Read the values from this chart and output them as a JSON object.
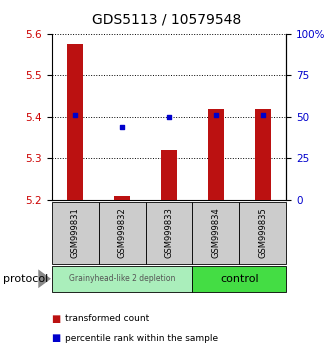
{
  "title": "GDS5113 / 10579548",
  "samples": [
    "GSM999831",
    "GSM999832",
    "GSM999833",
    "GSM999834",
    "GSM999835"
  ],
  "transformed_counts": [
    5.575,
    5.21,
    5.32,
    5.42,
    5.42
  ],
  "percentile_ranks": [
    51,
    44,
    50,
    51,
    51
  ],
  "bar_bottom": 5.2,
  "ylim_left": [
    5.2,
    5.6
  ],
  "ylim_right": [
    0,
    100
  ],
  "yticks_left": [
    5.2,
    5.3,
    5.4,
    5.5,
    5.6
  ],
  "yticks_right": [
    0,
    25,
    50,
    75,
    100
  ],
  "ytick_labels_right": [
    "0",
    "25",
    "50",
    "75",
    "100%"
  ],
  "left_color": "#cc0000",
  "right_color": "#0000cc",
  "bar_color": "#bb1111",
  "dot_color": "#0000cc",
  "groups": [
    {
      "label": "Grainyhead-like 2 depletion",
      "color": "#aaeebb",
      "n": 3
    },
    {
      "label": "control",
      "color": "#44dd44",
      "n": 2
    }
  ],
  "protocol_label": "protocol",
  "legend_items": [
    {
      "color": "#bb1111",
      "label": "transformed count"
    },
    {
      "color": "#0000cc",
      "label": "percentile rank within the sample"
    }
  ],
  "sample_box_color": "#cccccc",
  "background_color": "#ffffff",
  "title_fontsize": 10,
  "tick_fontsize": 7.5,
  "label_fontsize": 7.5
}
